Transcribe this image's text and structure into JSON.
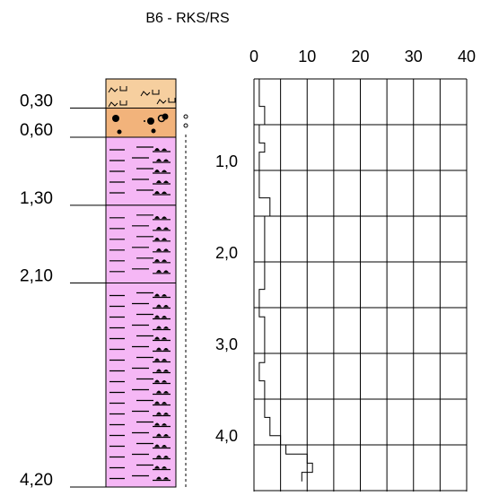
{
  "title": "B6 - RKS/RS",
  "column": {
    "depth_labels": [
      "0,30",
      "0,60",
      "1,30",
      "2,10",
      "4,20"
    ],
    "layers": [
      {
        "top": 0.0,
        "bottom": 0.3,
        "color": "#f6cf9f",
        "symbol": "topsoil"
      },
      {
        "top": 0.3,
        "bottom": 0.6,
        "color": "#f2b37b",
        "symbol": "gravel"
      },
      {
        "top": 0.6,
        "bottom": 1.3,
        "color": "#f5b7f5",
        "symbol": "silt-sand"
      },
      {
        "top": 1.3,
        "bottom": 2.1,
        "color": "#f5b7f5",
        "symbol": "silt-sand"
      },
      {
        "top": 2.1,
        "bottom": 4.2,
        "color": "#f5b7f5",
        "symbol": "silt-sand"
      }
    ]
  },
  "chart_data": {
    "type": "line",
    "title": "B6 - RKS/RS",
    "x_ticks": [
      "0",
      "10",
      "20",
      "30",
      "40"
    ],
    "y_ticks": [
      "1,0",
      "2,0",
      "3,0",
      "4,0"
    ],
    "xlim": [
      0,
      40
    ],
    "ylim": [
      0,
      4.2
    ],
    "y_inverted": true,
    "series": [
      {
        "values": [
          [
            1,
            0.0
          ],
          [
            1,
            0.3
          ],
          [
            2,
            0.3
          ],
          [
            2,
            0.5
          ],
          [
            1,
            0.5
          ],
          [
            1,
            0.7
          ],
          [
            2,
            0.7
          ],
          [
            2,
            0.8
          ],
          [
            1,
            0.8
          ],
          [
            1,
            1.3
          ],
          [
            3,
            1.3
          ],
          [
            3,
            1.5
          ],
          [
            2,
            1.5
          ],
          [
            2,
            2.3
          ],
          [
            1,
            2.3
          ],
          [
            1,
            2.6
          ],
          [
            2,
            2.6
          ],
          [
            2,
            3.1
          ],
          [
            1,
            3.1
          ],
          [
            1,
            3.3
          ],
          [
            2,
            3.3
          ],
          [
            2,
            3.7
          ],
          [
            3,
            3.7
          ],
          [
            3,
            3.9
          ],
          [
            5,
            3.9
          ],
          [
            5,
            4.0
          ],
          [
            6,
            4.0
          ],
          [
            6,
            4.1
          ],
          [
            10,
            4.1
          ],
          [
            10,
            4.2
          ],
          [
            11,
            4.2
          ],
          [
            11,
            4.3
          ],
          [
            9,
            4.3
          ],
          [
            9,
            4.4
          ]
        ]
      }
    ]
  }
}
